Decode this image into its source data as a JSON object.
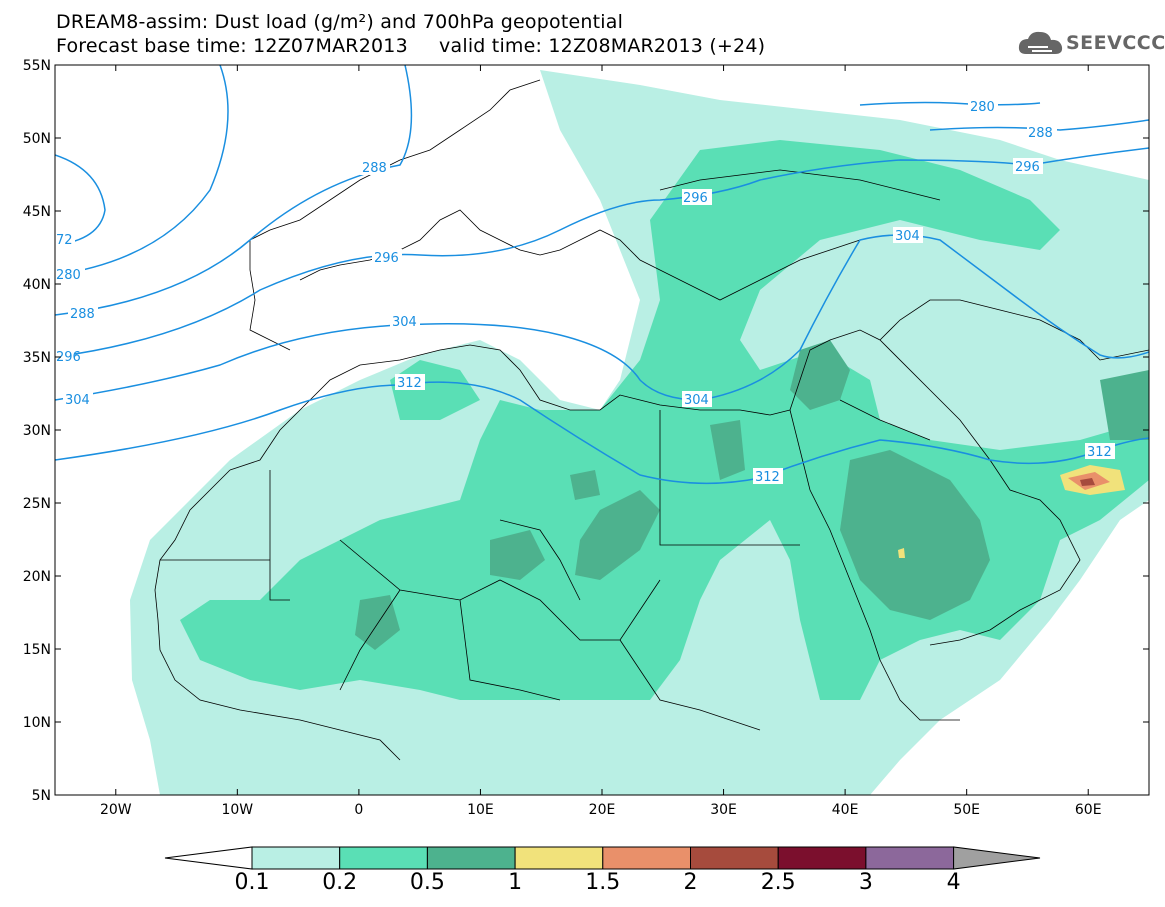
{
  "header": {
    "line1": "DREAM8-assim: Dust load (g/m²) and 700hPa geopotential",
    "line2": "Forecast base time: 12Z07MAR2013     valid time: 12Z08MAR2013 (+24)"
  },
  "logo": {
    "text": "SEEVCCC",
    "icon": "cloud-icon"
  },
  "map": {
    "lat_range": [
      5,
      55
    ],
    "lon_range": [
      -25,
      65
    ],
    "lat_ticks": [
      "55N",
      "50N",
      "45N",
      "40N",
      "35N",
      "30N",
      "25N",
      "20N",
      "15N",
      "10N",
      "5N"
    ],
    "lon_ticks": [
      "20W",
      "10W",
      "0",
      "10E",
      "20E",
      "30E",
      "40E",
      "50E",
      "60E"
    ],
    "colors": {
      "c1": "#b9efe4",
      "c2": "#5adfb5",
      "c3": "#4db28e",
      "c4": "#f1e27b",
      "c5": "#e9906a",
      "c6": "#a64b3d",
      "c7": "#7b0f2d",
      "c8": "#8c689b",
      "c9": "#a0a0a0",
      "contour": "#1a8fe0",
      "boundary": "#000000"
    },
    "contour_labels": [
      "280",
      "288",
      "296",
      "304",
      "312",
      "72"
    ]
  },
  "colorbar": {
    "labels": [
      "0.1",
      "0.2",
      "0.5",
      "1",
      "1.5",
      "2",
      "2.5",
      "3",
      "4"
    ]
  }
}
